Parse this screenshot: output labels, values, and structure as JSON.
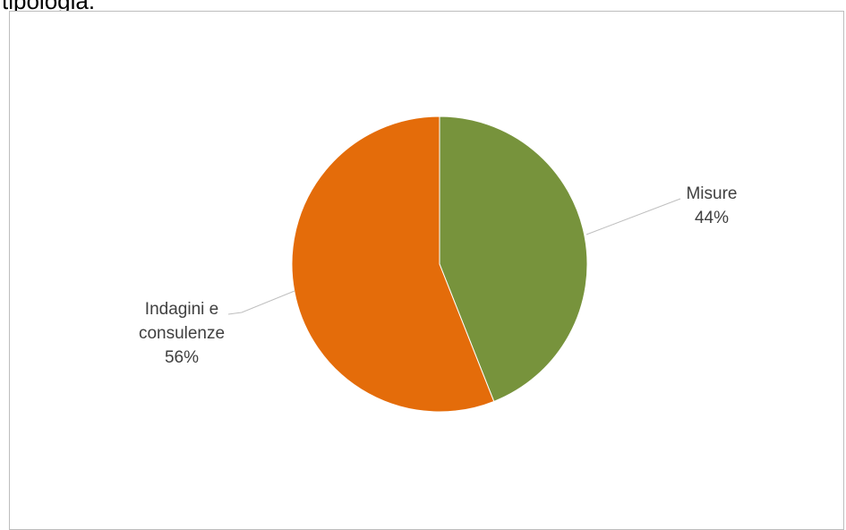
{
  "header": {
    "cutoff_text": "tipologia."
  },
  "chart_data": {
    "type": "pie",
    "title": "",
    "slices": [
      {
        "label_lines": [
          "Misure"
        ],
        "percent_label": "44%",
        "value": 44,
        "color": "#77933c"
      },
      {
        "label_lines": [
          "Indagini e",
          "consulenze"
        ],
        "percent_label": "56%",
        "value": 56,
        "color": "#e46c0a"
      }
    ],
    "start_angle_deg": 0,
    "direction": "clockwise",
    "legend": "none",
    "leader_line_color": "#bfbfbf"
  }
}
